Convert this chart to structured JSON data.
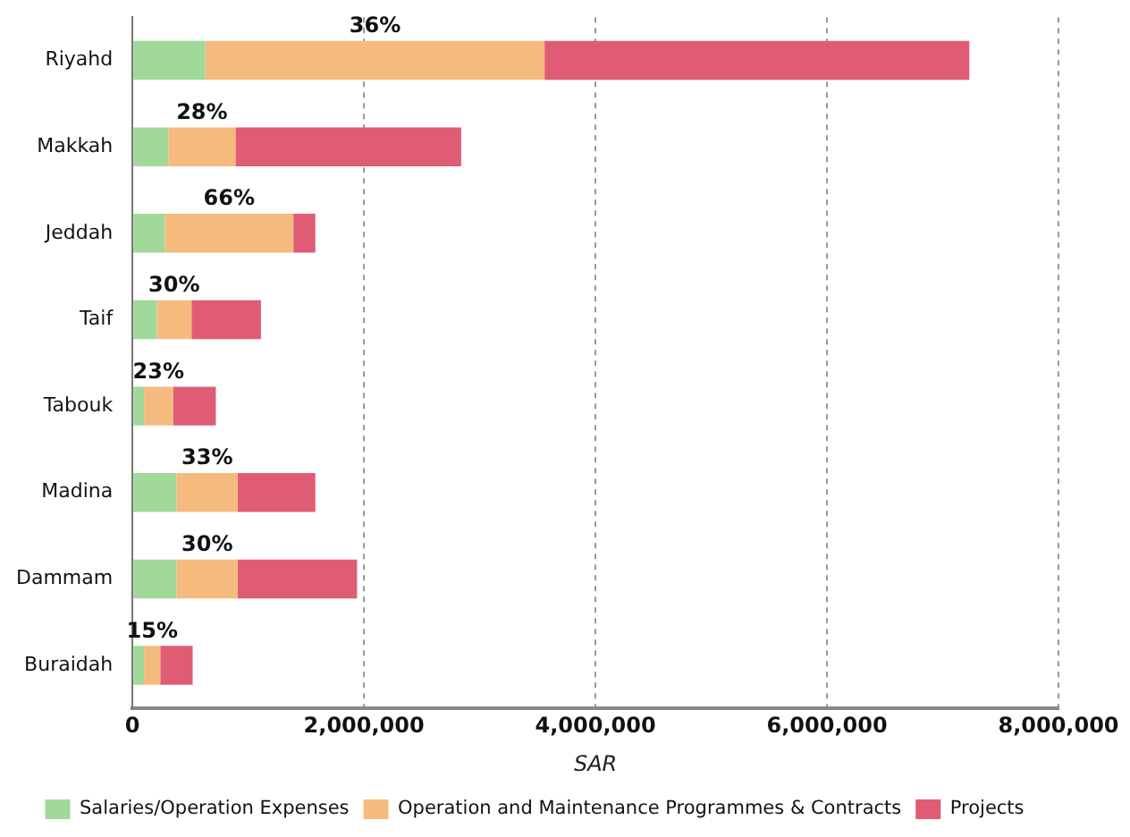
{
  "chart_data": {
    "type": "bar",
    "orientation": "horizontal",
    "stacked": true,
    "xlabel": "SAR",
    "categories": [
      "Riyahd",
      "Makkah",
      "Jeddah",
      "Taif",
      "Tabouk",
      "Madina",
      "Dammam",
      "Buraidah"
    ],
    "series": [
      {
        "name": "Salaries/Operation Expenses",
        "color": "#a1d99b",
        "values": [
          630000,
          310000,
          280000,
          210000,
          100000,
          380000,
          380000,
          100000
        ]
      },
      {
        "name": "Operation and Maintenance Programmes & Contracts",
        "color": "#f5bb7e",
        "values": [
          2930000,
          580000,
          1110000,
          300000,
          250000,
          530000,
          530000,
          140000
        ]
      },
      {
        "name": "Projects",
        "color": "#e05c74",
        "values": [
          3670000,
          1950000,
          190000,
          600000,
          370000,
          670000,
          1030000,
          280000
        ]
      }
    ],
    "xlim": [
      0,
      8000000
    ],
    "xticks": [
      0,
      {
        "value": 2000000,
        "label": "2,000,000"
      },
      {
        "value": 4000000,
        "label": "4,000,000"
      },
      {
        "value": 6000000,
        "label": "6,000,000"
      },
      {
        "value": 8000000,
        "label": "8,000,000"
      }
    ],
    "grid": "x",
    "legend": "bottom",
    "annotations": [
      "36%",
      "28%",
      "66%",
      "30%",
      "23%",
      "33%",
      "30%",
      "15%"
    ]
  }
}
